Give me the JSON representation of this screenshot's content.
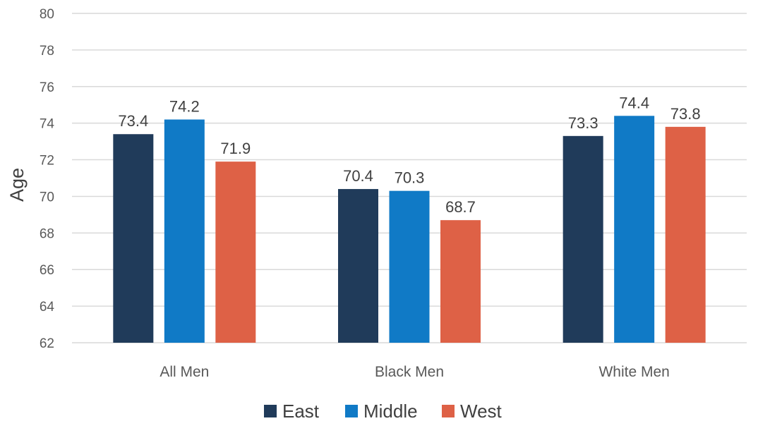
{
  "chart_data": {
    "type": "bar",
    "title": "",
    "xlabel": "",
    "ylabel": "Age",
    "ylim": [
      62,
      80
    ],
    "yticks": [
      62,
      64,
      66,
      68,
      70,
      72,
      74,
      76,
      78,
      80
    ],
    "grid": true,
    "legend_position": "bottom",
    "categories": [
      "All Men",
      "Black Men",
      "White Men"
    ],
    "series": [
      {
        "name": "East",
        "color": "#203b5a",
        "values": [
          73.4,
          70.4,
          73.3
        ]
      },
      {
        "name": "Middle",
        "color": "#107ac6",
        "values": [
          74.2,
          70.3,
          74.4
        ]
      },
      {
        "name": "West",
        "color": "#de6146",
        "values": [
          71.9,
          68.7,
          73.8
        ]
      }
    ]
  }
}
